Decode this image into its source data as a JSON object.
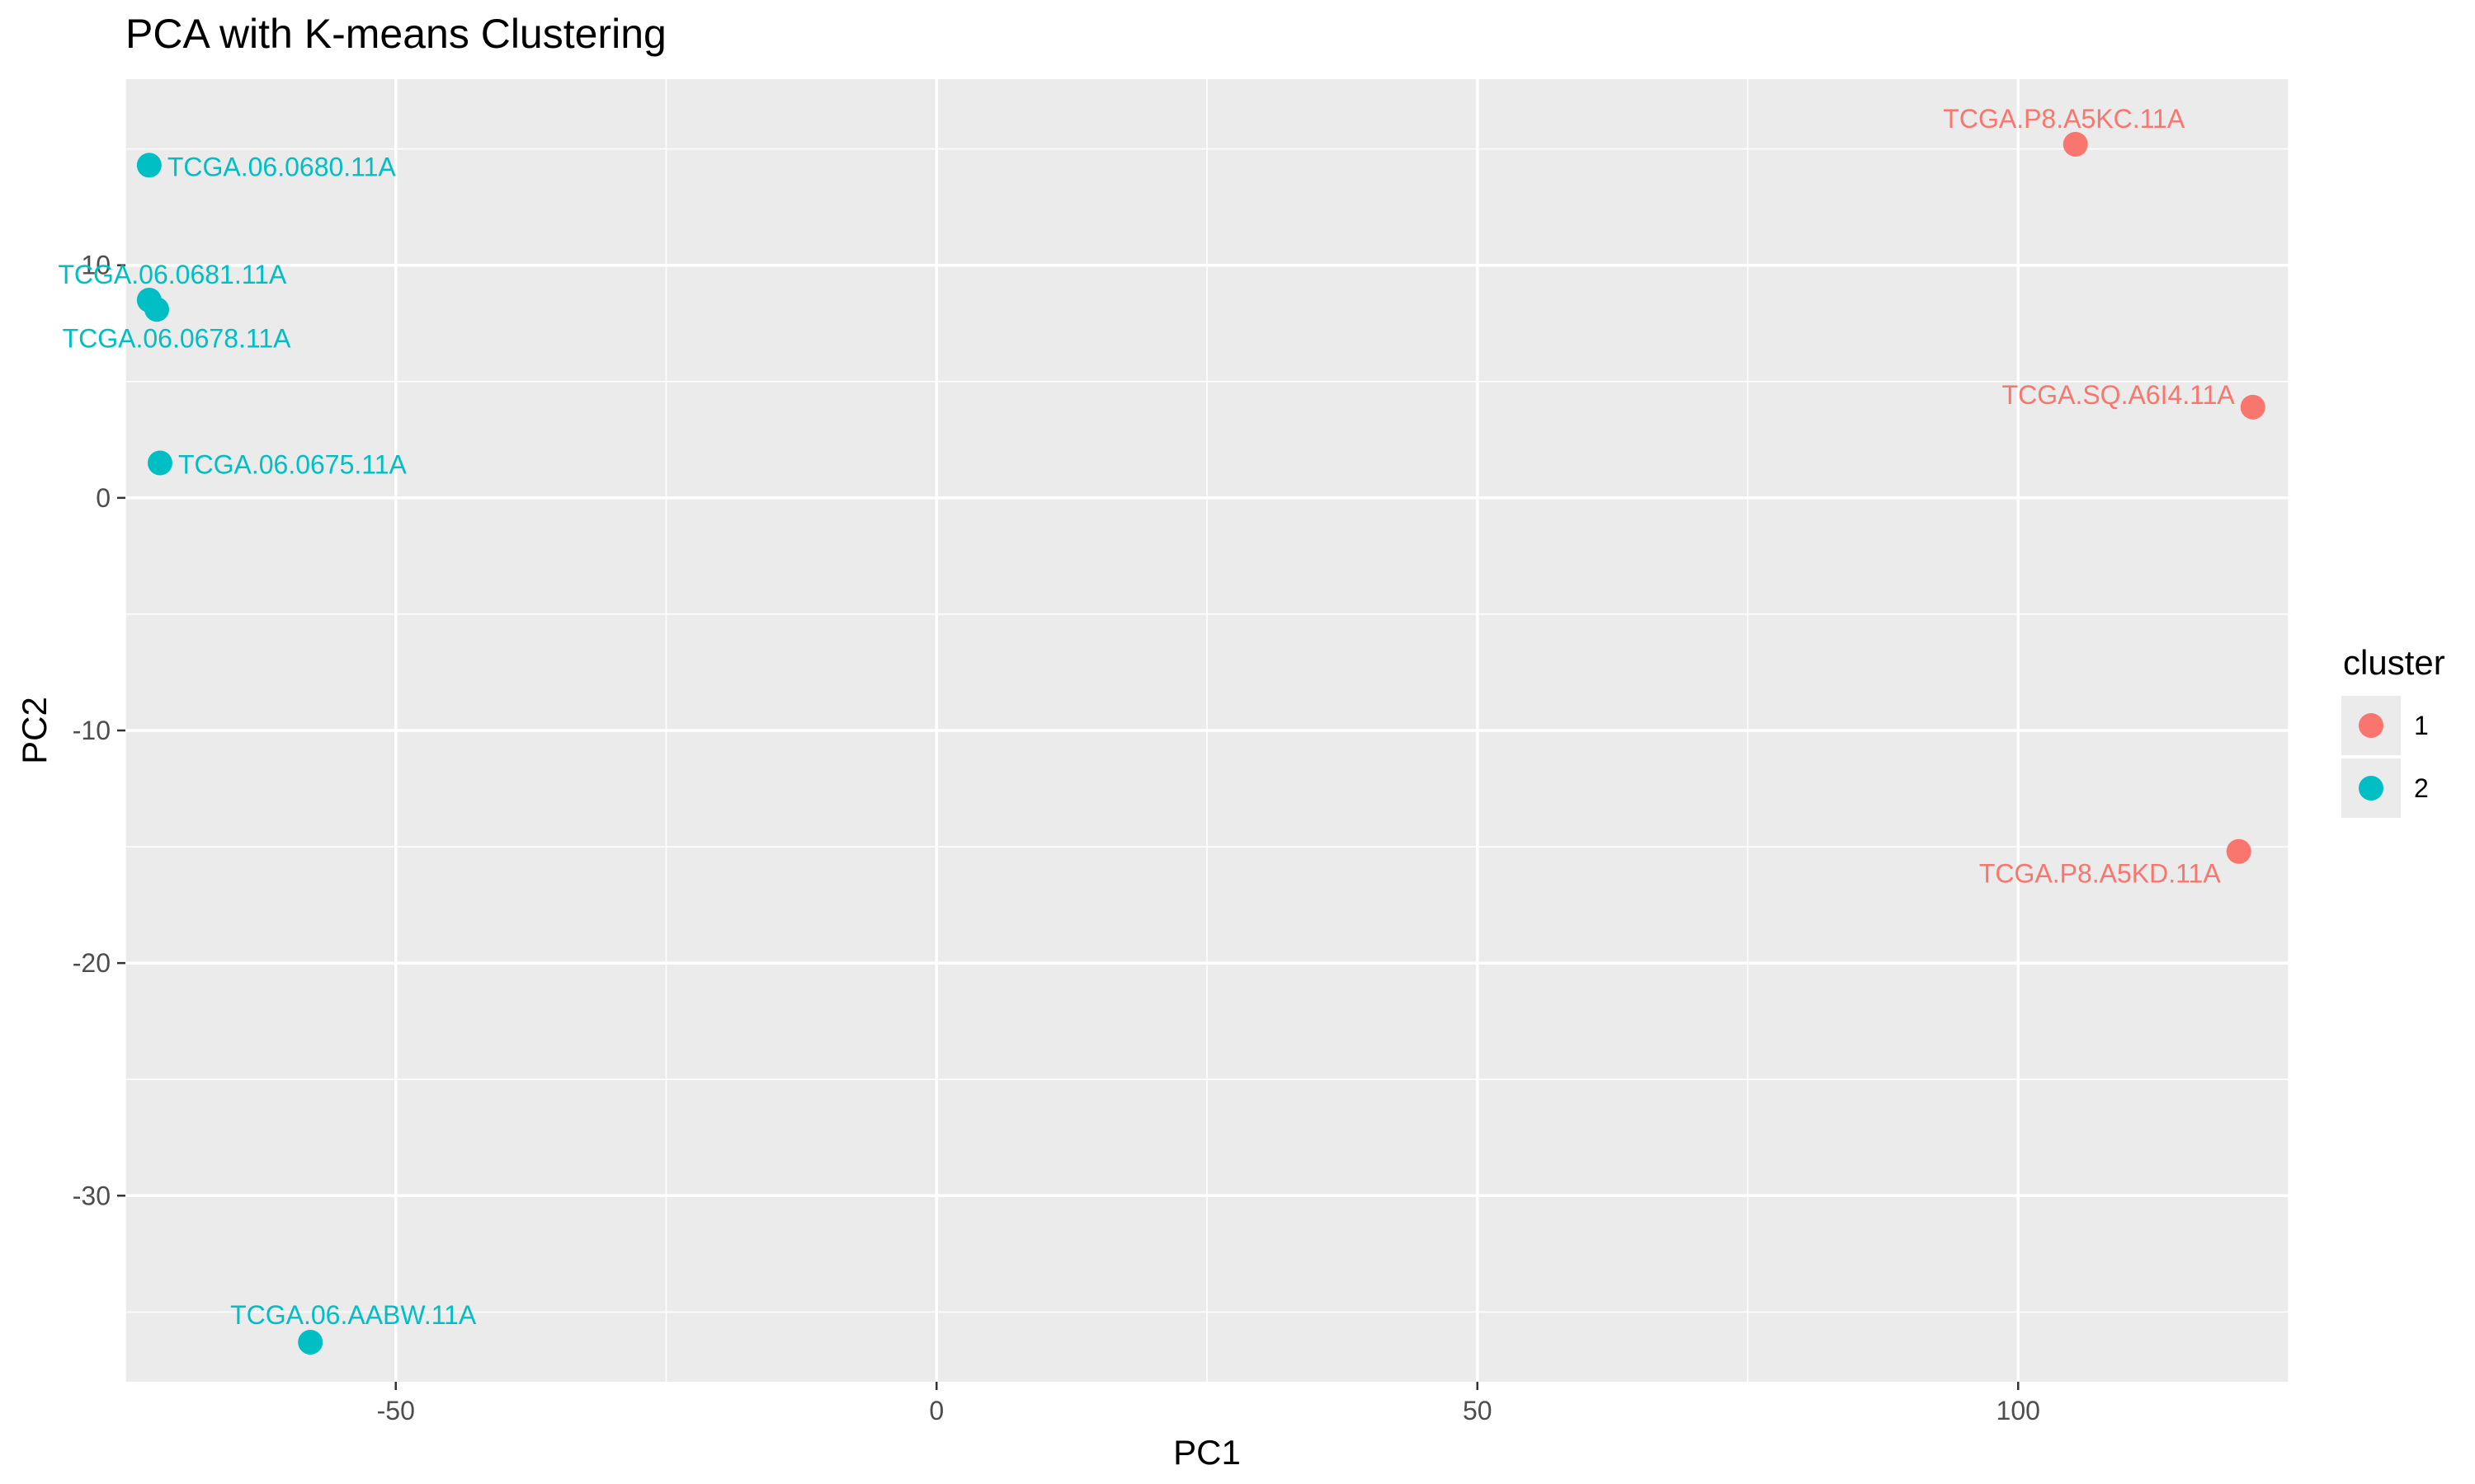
{
  "chart_data": {
    "type": "scatter",
    "title": "PCA with K-means Clustering",
    "xlabel": "PC1",
    "ylabel": "PC2",
    "xlim": [
      -75,
      125
    ],
    "ylim": [
      -38,
      18
    ],
    "x_ticks": [
      -50,
      0,
      50,
      100
    ],
    "y_ticks": [
      -30,
      -20,
      -10,
      0,
      10
    ],
    "grid": true,
    "legend": {
      "title": "cluster",
      "position": "right",
      "entries": [
        {
          "label": "1",
          "color": "#F8766D"
        },
        {
          "label": "2",
          "color": "#00BFC4"
        }
      ]
    },
    "series": [
      {
        "name": "1",
        "color": "#F8766D",
        "points": [
          {
            "label": "TCGA.P8.A5KC.11A",
            "x": 105.3,
            "y": 15.2
          },
          {
            "label": "TCGA.SQ.A6I4.11A",
            "x": 121.7,
            "y": 3.9
          },
          {
            "label": "TCGA.P8.A5KD.11A",
            "x": 120.4,
            "y": -15.2
          }
        ]
      },
      {
        "name": "2",
        "color": "#00BFC4",
        "points": [
          {
            "label": "TCGA.06.0680.11A",
            "x": -72.8,
            "y": 14.3
          },
          {
            "label": "TCGA.06.0681.11A",
            "x": -72.8,
            "y": 8.5
          },
          {
            "label": "TCGA.06.0678.11A",
            "x": -72.1,
            "y": 8.1
          },
          {
            "label": "TCGA.06.0675.11A",
            "x": -71.8,
            "y": 1.5
          },
          {
            "label": "TCGA.06.AABW.11A",
            "x": -57.9,
            "y": -36.3
          }
        ]
      }
    ]
  }
}
